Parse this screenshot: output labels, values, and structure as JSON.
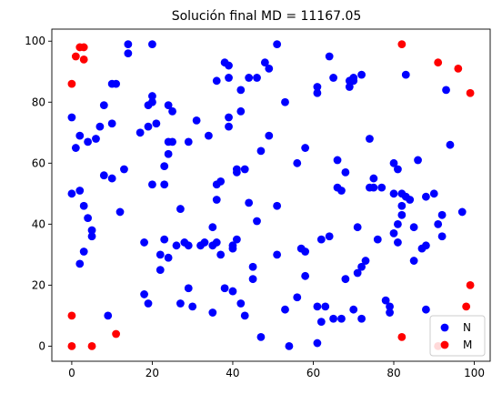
{
  "chart_data": {
    "type": "scatter",
    "title": "Solución final MD = 11167.05",
    "xlabel": "",
    "ylabel": "",
    "xlim": [
      -4.95,
      103.95
    ],
    "ylim": [
      -4.95,
      103.95
    ],
    "xticks": [
      0,
      20,
      40,
      60,
      80,
      100
    ],
    "yticks": [
      0,
      20,
      40,
      60,
      80,
      100
    ],
    "grid": false,
    "legend_position": "lower-right",
    "series": [
      {
        "name": "N",
        "color": "#0000ff",
        "points": [
          [
            0,
            75
          ],
          [
            0,
            50
          ],
          [
            1,
            65
          ],
          [
            2,
            69
          ],
          [
            2,
            51
          ],
          [
            3,
            46
          ],
          [
            4,
            67
          ],
          [
            4,
            42
          ],
          [
            5,
            38
          ],
          [
            5,
            36
          ],
          [
            6,
            68
          ],
          [
            7,
            72
          ],
          [
            8,
            79
          ],
          [
            8,
            56
          ],
          [
            9,
            10
          ],
          [
            10,
            73
          ],
          [
            10,
            86
          ],
          [
            10,
            55
          ],
          [
            11,
            86
          ],
          [
            12,
            44
          ],
          [
            13,
            58
          ],
          [
            3,
            31
          ],
          [
            2,
            27
          ],
          [
            14,
            96
          ],
          [
            14,
            99
          ],
          [
            17,
            70
          ],
          [
            18,
            34
          ],
          [
            18,
            17
          ],
          [
            19,
            14
          ],
          [
            19,
            72
          ],
          [
            19,
            79
          ],
          [
            20,
            99
          ],
          [
            20,
            82
          ],
          [
            20,
            80
          ],
          [
            20,
            53
          ],
          [
            21,
            73
          ],
          [
            22,
            25
          ],
          [
            22,
            30
          ],
          [
            23,
            35
          ],
          [
            23,
            53
          ],
          [
            23,
            59
          ],
          [
            24,
            63
          ],
          [
            24,
            67
          ],
          [
            24,
            29
          ],
          [
            24,
            79
          ],
          [
            25,
            67
          ],
          [
            25,
            77
          ],
          [
            26,
            33
          ],
          [
            27,
            45
          ],
          [
            27,
            14
          ],
          [
            28,
            34
          ],
          [
            29,
            19
          ],
          [
            29,
            67
          ],
          [
            29,
            33
          ],
          [
            30,
            13
          ],
          [
            31,
            74
          ],
          [
            32,
            33
          ],
          [
            33,
            34
          ],
          [
            34,
            69
          ],
          [
            35,
            39
          ],
          [
            35,
            11
          ],
          [
            35,
            33
          ],
          [
            36,
            34
          ],
          [
            36,
            87
          ],
          [
            36,
            53
          ],
          [
            36,
            48
          ],
          [
            37,
            30
          ],
          [
            37,
            54
          ],
          [
            38,
            93
          ],
          [
            38,
            19
          ],
          [
            39,
            92
          ],
          [
            39,
            75
          ],
          [
            39,
            72
          ],
          [
            39,
            88
          ],
          [
            40,
            32
          ],
          [
            40,
            18
          ],
          [
            40,
            33
          ],
          [
            41,
            58
          ],
          [
            41,
            35
          ],
          [
            41,
            57
          ],
          [
            42,
            84
          ],
          [
            42,
            77
          ],
          [
            42,
            14
          ],
          [
            43,
            58
          ],
          [
            43,
            10
          ],
          [
            44,
            88
          ],
          [
            44,
            47
          ],
          [
            45,
            26
          ],
          [
            45,
            22
          ],
          [
            46,
            88
          ],
          [
            46,
            41
          ],
          [
            47,
            64
          ],
          [
            47,
            3
          ],
          [
            48,
            93
          ],
          [
            49,
            91
          ],
          [
            49,
            69
          ],
          [
            51,
            99
          ],
          [
            51,
            46
          ],
          [
            51,
            30
          ],
          [
            53,
            80
          ],
          [
            53,
            12
          ],
          [
            54,
            0
          ],
          [
            56,
            60
          ],
          [
            56,
            16
          ],
          [
            57,
            32
          ],
          [
            58,
            65
          ],
          [
            58,
            31
          ],
          [
            58,
            23
          ],
          [
            61,
            85
          ],
          [
            61,
            83
          ],
          [
            61,
            13
          ],
          [
            61,
            1
          ],
          [
            62,
            35
          ],
          [
            62,
            8
          ],
          [
            63,
            13
          ],
          [
            64,
            95
          ],
          [
            64,
            36
          ],
          [
            65,
            88
          ],
          [
            65,
            9
          ],
          [
            66,
            52
          ],
          [
            66,
            61
          ],
          [
            67,
            51
          ],
          [
            67,
            9
          ],
          [
            68,
            22
          ],
          [
            68,
            57
          ],
          [
            69,
            87
          ],
          [
            69,
            85
          ],
          [
            70,
            88
          ],
          [
            70,
            87
          ],
          [
            70,
            12
          ],
          [
            71,
            39
          ],
          [
            71,
            24
          ],
          [
            72,
            9
          ],
          [
            72,
            26
          ],
          [
            72,
            89
          ],
          [
            73,
            28
          ],
          [
            74,
            68
          ],
          [
            74,
            52
          ],
          [
            75,
            55
          ],
          [
            75,
            52
          ],
          [
            76,
            35
          ],
          [
            77,
            52
          ],
          [
            78,
            15
          ],
          [
            79,
            13
          ],
          [
            79,
            11
          ],
          [
            80,
            60
          ],
          [
            80,
            50
          ],
          [
            80,
            37
          ],
          [
            81,
            58
          ],
          [
            81,
            40
          ],
          [
            81,
            34
          ],
          [
            82,
            50
          ],
          [
            82,
            46
          ],
          [
            82,
            43
          ],
          [
            83,
            89
          ],
          [
            83,
            49
          ],
          [
            84,
            48
          ],
          [
            85,
            39
          ],
          [
            85,
            28
          ],
          [
            86,
            61
          ],
          [
            87,
            32
          ],
          [
            88,
            33
          ],
          [
            88,
            49
          ],
          [
            88,
            12
          ],
          [
            90,
            50
          ],
          [
            91,
            40
          ],
          [
            92,
            43
          ],
          [
            92,
            36
          ],
          [
            93,
            84
          ],
          [
            94,
            66
          ],
          [
            97,
            44
          ]
        ]
      },
      {
        "name": "M",
        "color": "#ff0000",
        "points": [
          [
            0,
            86
          ],
          [
            0,
            10
          ],
          [
            0,
            0
          ],
          [
            1,
            95
          ],
          [
            2,
            98
          ],
          [
            3,
            98
          ],
          [
            3,
            94
          ],
          [
            5,
            0
          ],
          [
            11,
            4
          ],
          [
            82,
            99
          ],
          [
            82,
            3
          ],
          [
            91,
            93
          ],
          [
            91,
            0
          ],
          [
            96,
            91
          ],
          [
            98,
            13
          ],
          [
            99,
            20
          ],
          [
            99,
            83
          ]
        ]
      }
    ]
  }
}
